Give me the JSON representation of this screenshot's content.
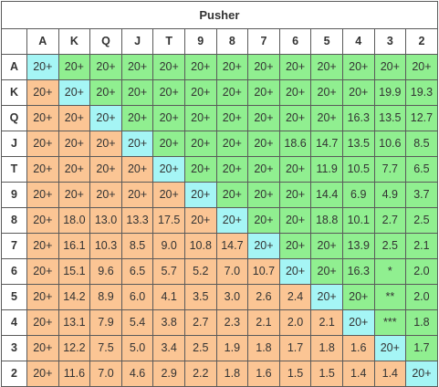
{
  "title": "Pusher",
  "ranks": [
    "A",
    "K",
    "Q",
    "J",
    "T",
    "9",
    "8",
    "7",
    "6",
    "5",
    "4",
    "3",
    "2"
  ],
  "colors": {
    "offsuit": "#fbc594",
    "pair": "#a5f5f5",
    "suited": "#90ef90",
    "border": "#5a5a5a"
  },
  "rows": [
    [
      "20+",
      "20+",
      "20+",
      "20+",
      "20+",
      "20+",
      "20+",
      "20+",
      "20+",
      "20+",
      "20+",
      "20+",
      "20+"
    ],
    [
      "20+",
      "20+",
      "20+",
      "20+",
      "20+",
      "20+",
      "20+",
      "20+",
      "20+",
      "20+",
      "20+",
      "19.9",
      "19.3"
    ],
    [
      "20+",
      "20+",
      "20+",
      "20+",
      "20+",
      "20+",
      "20+",
      "20+",
      "20+",
      "20+",
      "16.3",
      "13.5",
      "12.7"
    ],
    [
      "20+",
      "20+",
      "20+",
      "20+",
      "20+",
      "20+",
      "20+",
      "20+",
      "18.6",
      "14.7",
      "13.5",
      "10.6",
      "8.5"
    ],
    [
      "20+",
      "20+",
      "20+",
      "20+",
      "20+",
      "20+",
      "20+",
      "20+",
      "20+",
      "11.9",
      "10.5",
      "7.7",
      "6.5"
    ],
    [
      "20+",
      "20+",
      "20+",
      "20+",
      "20+",
      "20+",
      "20+",
      "20+",
      "20+",
      "14.4",
      "6.9",
      "4.9",
      "3.7"
    ],
    [
      "20+",
      "18.0",
      "13.0",
      "13.3",
      "17.5",
      "20+",
      "20+",
      "20+",
      "20+",
      "18.8",
      "10.1",
      "2.7",
      "2.5"
    ],
    [
      "20+",
      "16.1",
      "10.3",
      "8.5",
      "9.0",
      "10.8",
      "14.7",
      "20+",
      "20+",
      "20+",
      "13.9",
      "2.5",
      "2.1"
    ],
    [
      "20+",
      "15.1",
      "9.6",
      "6.5",
      "5.7",
      "5.2",
      "7.0",
      "10.7",
      "20+",
      "20+",
      "16.3",
      "*",
      "2.0"
    ],
    [
      "20+",
      "14.2",
      "8.9",
      "6.0",
      "4.1",
      "3.5",
      "3.0",
      "2.6",
      "2.4",
      "20+",
      "20+",
      "**",
      "2.0"
    ],
    [
      "20+",
      "13.1",
      "7.9",
      "5.4",
      "3.8",
      "2.7",
      "2.3",
      "2.1",
      "2.0",
      "2.1",
      "20+",
      "***",
      "1.8"
    ],
    [
      "20+",
      "12.2",
      "7.5",
      "5.0",
      "3.4",
      "2.5",
      "1.9",
      "1.8",
      "1.7",
      "1.8",
      "1.6",
      "20+",
      "1.7"
    ],
    [
      "20+",
      "11.6",
      "7.0",
      "4.6",
      "2.9",
      "2.2",
      "1.8",
      "1.6",
      "1.5",
      "1.5",
      "1.4",
      "1.4",
      "20+"
    ]
  ]
}
